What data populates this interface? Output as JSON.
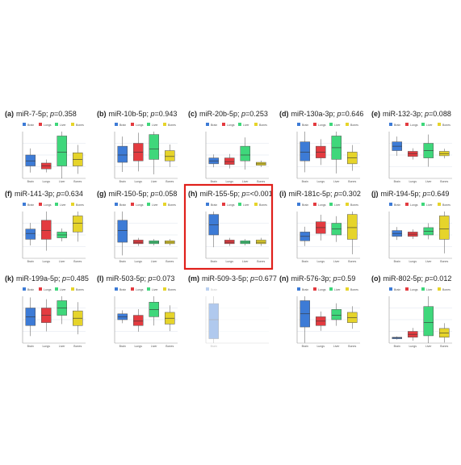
{
  "highlight": {
    "panel_index": 7,
    "color": "#e0201b"
  },
  "legend_colors": [
    "#3d7bd6",
    "#e33b40",
    "#3fd77b",
    "#e6d42a"
  ],
  "grid_color": "#dde3ec",
  "chart_data": [
    {
      "type": "box",
      "label": "(a)",
      "mirna": "miR-7-5p",
      "p": "0.358",
      "categories": [
        "Brain",
        "Lungs",
        "Liver",
        "Bones"
      ],
      "series": [
        {
          "name": "Brain",
          "box": [
            0.85,
            1.2,
            1.6
          ]
        },
        {
          "name": "Lungs",
          "box": [
            0.65,
            0.85,
            1.05
          ]
        },
        {
          "name": "Liver",
          "box": [
            0.85,
            1.8,
            2.9
          ]
        },
        {
          "name": "Bones",
          "box": [
            0.85,
            1.3,
            1.75
          ]
        }
      ]
    },
    {
      "type": "box",
      "label": "(b)",
      "mirna": "miR-10b-5p",
      "p": "0.943",
      "categories": [
        "Brain",
        "Lungs",
        "Liver",
        "Bones"
      ],
      "series": [
        {
          "name": "Brain",
          "box": [
            1.1,
            1.6,
            2.2
          ]
        },
        {
          "name": "Lungs",
          "box": [
            1.2,
            1.8,
            2.4
          ]
        },
        {
          "name": "Liver",
          "box": [
            1.3,
            2.0,
            3.0
          ]
        },
        {
          "name": "Bones",
          "box": [
            1.2,
            1.5,
            1.9
          ]
        }
      ]
    },
    {
      "type": "box",
      "label": "(c)",
      "mirna": "miR-20b-5p",
      "p": "0.253",
      "categories": [
        "Brain",
        "Lungs",
        "Liver",
        "Bones"
      ],
      "series": [
        {
          "name": "Brain",
          "box": [
            1.0,
            1.2,
            1.4
          ]
        },
        {
          "name": "Lungs",
          "box": [
            0.95,
            1.15,
            1.4
          ]
        },
        {
          "name": "Liver",
          "box": [
            1.2,
            1.6,
            2.2
          ]
        },
        {
          "name": "Bones",
          "box": [
            0.9,
            1.0,
            1.1
          ]
        }
      ]
    },
    {
      "type": "box",
      "label": "(d)",
      "mirna": "miR-130a-3p",
      "p": "0.646",
      "categories": [
        "Brain",
        "Lungs",
        "Liver",
        "Bones"
      ],
      "series": [
        {
          "name": "Brain",
          "box": [
            1.2,
            1.8,
            2.5
          ]
        },
        {
          "name": "Lungs",
          "box": [
            1.4,
            1.8,
            2.2
          ]
        },
        {
          "name": "Liver",
          "box": [
            1.3,
            2.1,
            2.9
          ]
        },
        {
          "name": "Bones",
          "box": [
            1.0,
            1.4,
            1.8
          ]
        }
      ]
    },
    {
      "type": "box",
      "label": "(e)",
      "mirna": "miR-132-3p",
      "p": "0.088",
      "categories": [
        "Brain",
        "Lungs",
        "Liver",
        "Bones"
      ],
      "series": [
        {
          "name": "Brain",
          "box": [
            1.9,
            2.2,
            2.5
          ]
        },
        {
          "name": "Lungs",
          "box": [
            1.5,
            1.7,
            1.85
          ]
        },
        {
          "name": "Liver",
          "box": [
            1.4,
            1.9,
            2.4
          ]
        },
        {
          "name": "Bones",
          "box": [
            1.55,
            1.7,
            1.85
          ]
        }
      ]
    },
    {
      "type": "box",
      "label": "(f)",
      "mirna": "miR-141-3p",
      "p": "0.634",
      "categories": [
        "Brain",
        "Lungs",
        "Liver",
        "Bones"
      ],
      "series": [
        {
          "name": "Brain",
          "box": [
            1.3,
            1.7,
            2.0
          ]
        },
        {
          "name": "Lungs",
          "box": [
            1.3,
            1.9,
            2.6
          ]
        },
        {
          "name": "Liver",
          "box": [
            1.4,
            1.6,
            1.8
          ]
        },
        {
          "name": "Bones",
          "box": [
            1.8,
            2.4,
            2.9
          ]
        }
      ]
    },
    {
      "type": "box",
      "label": "(g)",
      "mirna": "miR-150-5p",
      "p": "0.058",
      "categories": [
        "Brain",
        "Lungs",
        "Liver",
        "Bones"
      ],
      "series": [
        {
          "name": "Brain",
          "box": [
            1.1,
            1.9,
            2.6
          ]
        },
        {
          "name": "Lungs",
          "box": [
            1.0,
            1.1,
            1.25
          ]
        },
        {
          "name": "Liver",
          "box": [
            1.0,
            1.1,
            1.2
          ]
        },
        {
          "name": "Bones",
          "box": [
            1.0,
            1.1,
            1.2
          ]
        }
      ]
    },
    {
      "type": "box",
      "label": "(h)",
      "mirna": "miR-155-5p",
      "p": "<0.001",
      "categories": [
        "Brain",
        "Lungs",
        "Liver",
        "Bones"
      ],
      "series": [
        {
          "name": "Brain",
          "box": [
            1.6,
            2.3,
            3.0
          ]
        },
        {
          "name": "Lungs",
          "box": [
            1.0,
            1.1,
            1.25
          ]
        },
        {
          "name": "Liver",
          "box": [
            1.0,
            1.1,
            1.2
          ]
        },
        {
          "name": "Bones",
          "box": [
            1.0,
            1.1,
            1.25
          ]
        }
      ]
    },
    {
      "type": "box",
      "label": "(i)",
      "mirna": "miR-181c-5p",
      "p": "0.302",
      "categories": [
        "Brain",
        "Lungs",
        "Liver",
        "Bones"
      ],
      "series": [
        {
          "name": "Brain",
          "box": [
            1.2,
            1.5,
            1.8
          ]
        },
        {
          "name": "Lungs",
          "box": [
            1.7,
            2.1,
            2.5
          ]
        },
        {
          "name": "Liver",
          "box": [
            1.6,
            2.0,
            2.4
          ]
        },
        {
          "name": "Bones",
          "box": [
            1.3,
            2.1,
            3.0
          ]
        }
      ]
    },
    {
      "type": "box",
      "label": "(j)",
      "mirna": "miR-194-5p",
      "p": "0.649",
      "categories": [
        "Brain",
        "Lungs",
        "Liver",
        "Bones"
      ],
      "series": [
        {
          "name": "Brain",
          "box": [
            1.5,
            1.7,
            1.9
          ]
        },
        {
          "name": "Lungs",
          "box": [
            1.5,
            1.65,
            1.8
          ]
        },
        {
          "name": "Liver",
          "box": [
            1.6,
            1.85,
            2.1
          ]
        },
        {
          "name": "Bones",
          "box": [
            1.3,
            2.0,
            2.9
          ]
        }
      ]
    },
    {
      "type": "box",
      "label": "(k)",
      "mirna": "miR-199a-5p",
      "p": "0.485",
      "categories": [
        "Brain",
        "Lungs",
        "Liver",
        "Bones"
      ],
      "series": [
        {
          "name": "Brain",
          "box": [
            1.2,
            1.8,
            2.4
          ]
        },
        {
          "name": "Lungs",
          "box": [
            1.4,
            1.9,
            2.4
          ]
        },
        {
          "name": "Liver",
          "box": [
            1.9,
            2.4,
            2.9
          ]
        },
        {
          "name": "Bones",
          "box": [
            1.2,
            1.7,
            2.2
          ]
        }
      ]
    },
    {
      "type": "box",
      "label": "(l)",
      "mirna": "miR-503-5p",
      "p": "0.073",
      "categories": [
        "Brain",
        "Lungs",
        "Liver",
        "Bones"
      ],
      "series": [
        {
          "name": "Brain",
          "box": [
            1.6,
            1.8,
            2.0
          ]
        },
        {
          "name": "Lungs",
          "box": [
            1.2,
            1.5,
            1.9
          ]
        },
        {
          "name": "Liver",
          "box": [
            1.8,
            2.3,
            2.8
          ]
        },
        {
          "name": "Bones",
          "box": [
            1.3,
            1.7,
            2.1
          ]
        }
      ]
    },
    {
      "type": "box",
      "label": "(m)",
      "mirna": "miR-509-3-5p",
      "p": "0.677",
      "categories": [
        "Brain"
      ],
      "series": [
        {
          "name": "Brain",
          "box": [
            0.3,
            1.6,
            2.7
          ]
        }
      ]
    },
    {
      "type": "box",
      "label": "(n)",
      "mirna": "miR-576-3p",
      "p": "0.59",
      "categories": [
        "Brain",
        "Lungs",
        "Liver",
        "Bones"
      ],
      "series": [
        {
          "name": "Brain",
          "box": [
            1.1,
            2.0,
            2.9
          ]
        },
        {
          "name": "Lungs",
          "box": [
            1.2,
            1.5,
            1.8
          ]
        },
        {
          "name": "Liver",
          "box": [
            1.6,
            1.9,
            2.3
          ]
        },
        {
          "name": "Bones",
          "box": [
            1.4,
            1.75,
            2.1
          ]
        }
      ]
    },
    {
      "type": "box",
      "label": "(o)",
      "mirna": "miR-802-5p",
      "p": "0.012",
      "categories": [
        "Brain",
        "Lungs",
        "Liver",
        "Bones"
      ],
      "series": [
        {
          "name": "Brain",
          "box": [
            0.3,
            0.35,
            0.4
          ]
        },
        {
          "name": "Lungs",
          "box": [
            0.4,
            0.6,
            0.8
          ]
        },
        {
          "name": "Liver",
          "box": [
            0.5,
            1.4,
            2.5
          ]
        },
        {
          "name": "Bones",
          "box": [
            0.4,
            0.7,
            1.0
          ]
        }
      ]
    }
  ]
}
